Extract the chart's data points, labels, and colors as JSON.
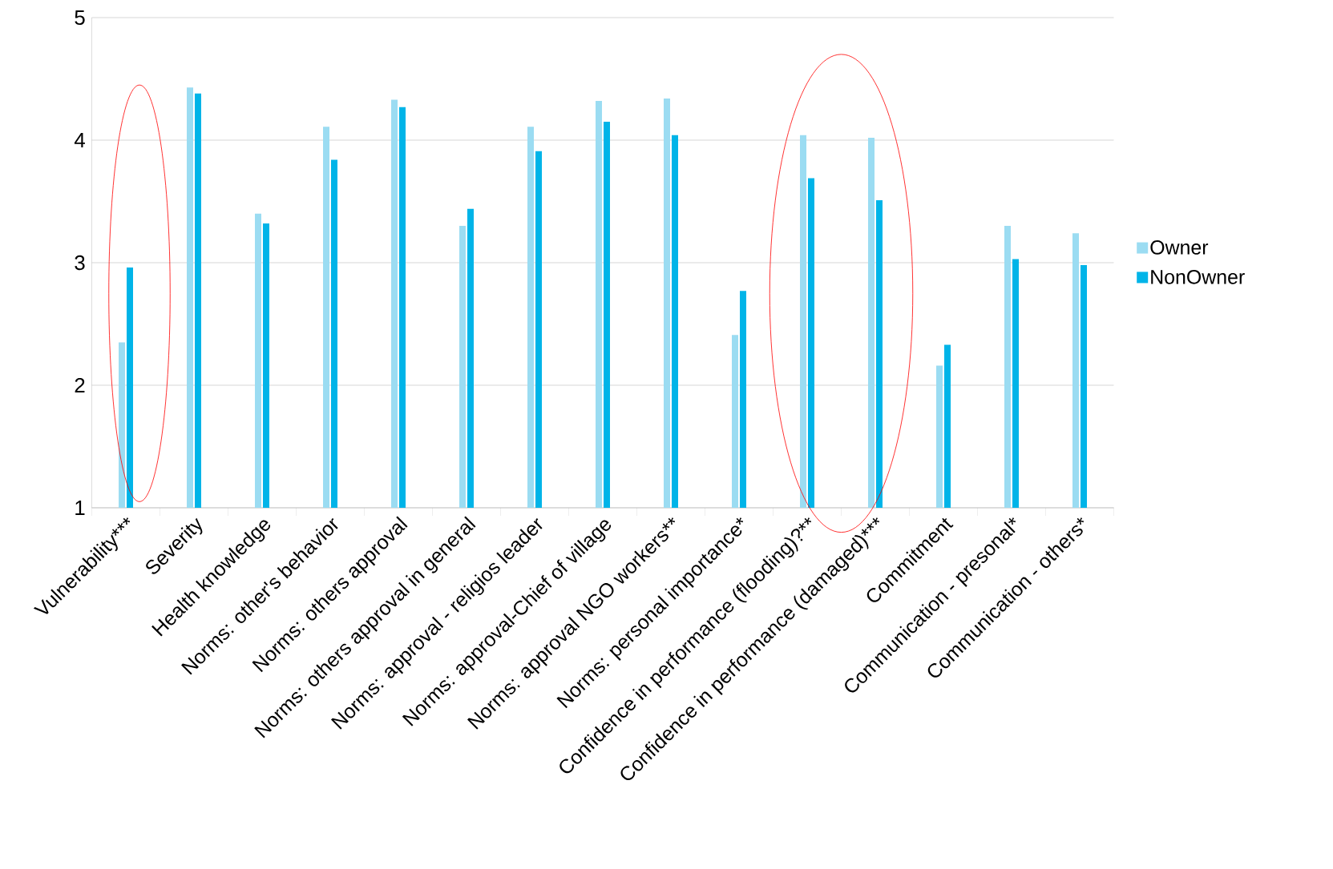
{
  "chart_data": {
    "type": "bar",
    "categories": [
      "Vulnerability***",
      "Severity",
      "Health knowledge",
      "Norms: other's behavior",
      "Norms: others approval",
      "Norms: others approval in general",
      "Norms: approval - religios leader",
      "Norms: approval-Chief of village",
      "Norms: approval NGO workers**",
      "Norms: personal importance*",
      "Confidence in performance (flooding)?**",
      "Confidence in performance (damaged)***",
      "Commitment",
      "Communication - presonal*",
      "Communication - others*"
    ],
    "series": [
      {
        "name": "Owner",
        "color": "#9bdcf2",
        "values": [
          2.35,
          4.43,
          3.4,
          4.11,
          4.33,
          3.3,
          4.11,
          4.32,
          4.34,
          2.41,
          4.04,
          4.02,
          2.16,
          3.3,
          3.24
        ]
      },
      {
        "name": "NonOwner",
        "color": "#00b4e8",
        "values": [
          2.96,
          4.38,
          3.32,
          3.84,
          4.27,
          3.44,
          3.91,
          4.15,
          4.04,
          2.77,
          3.69,
          3.51,
          2.33,
          3.03,
          2.98
        ]
      }
    ],
    "ylim": [
      1,
      5
    ],
    "yticks": [
      1,
      2,
      3,
      4,
      5
    ],
    "grid": "y",
    "legend": "right"
  }
}
